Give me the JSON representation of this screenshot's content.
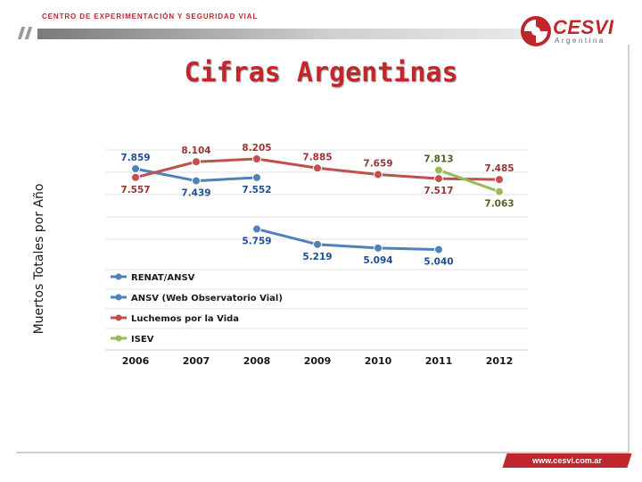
{
  "header": {
    "org_name": "CENTRO DE EXPERIMENTACIÓN Y SEGURIDAD VIAL",
    "logo_name": "CESVI",
    "logo_sub": "Argentina",
    "logo_icon": "cesvi-globe-icon"
  },
  "page_title": "Cifras Argentinas",
  "footer": {
    "url": "www.cesvi.com.ar"
  },
  "colors": {
    "brand_red": "#c0272d",
    "series_blue": "#4f81bd",
    "series_red": "#c0504d",
    "series_green": "#9bbb59",
    "label_blue": "#1f4e99",
    "label_red": "#943634",
    "label_green": "#4f6228"
  },
  "chart_data": {
    "type": "line",
    "ylabel": "Muertos Totales por Año",
    "xlabel": "",
    "categories": [
      "2006",
      "2007",
      "2008",
      "2009",
      "2010",
      "2011",
      "2012"
    ],
    "ylim": [
      4500,
      8500
    ],
    "grid": true,
    "legend_position": "bottom-left",
    "series": [
      {
        "name": "RENAT/ANSV",
        "color": "#4f81bd",
        "values": [
          7859,
          7439,
          7552,
          null,
          null,
          null,
          null
        ],
        "labels": [
          "7.859",
          "7.439",
          "7.552",
          "",
          "",
          "",
          ""
        ]
      },
      {
        "name": "ANSV (Web Observatorio Vial)",
        "color": "#4f81bd",
        "values": [
          null,
          null,
          5759,
          5219,
          5094,
          5040,
          null
        ],
        "labels": [
          "",
          "",
          "5.759",
          "5.219",
          "5.094",
          "5.040",
          ""
        ]
      },
      {
        "name": "Luchemos por la Vida",
        "color": "#c0504d",
        "values": [
          7557,
          8104,
          8205,
          7885,
          7659,
          7517,
          7485
        ],
        "labels": [
          "7.557",
          "8.104",
          "8.205",
          "7.885",
          "7.659",
          "7.517",
          "7.485"
        ]
      },
      {
        "name": "ISEV",
        "color": "#9bbb59",
        "values": [
          null,
          null,
          null,
          null,
          null,
          7813,
          7063
        ],
        "labels": [
          "",
          "",
          "",
          "",
          "",
          "7.813",
          "7.063"
        ]
      }
    ]
  }
}
